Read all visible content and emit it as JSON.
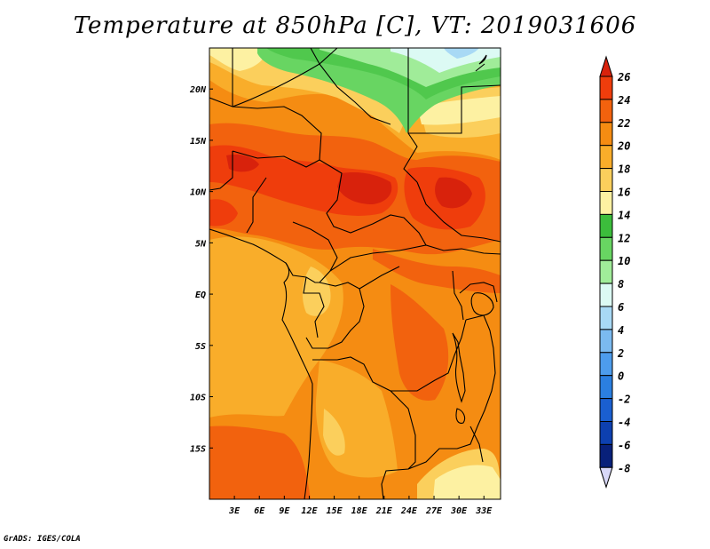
{
  "title": "Temperature at 850hPa [C], VT: 2019031606",
  "credit": "GrADS: IGES/COLA",
  "map": {
    "lon_range": [
      0,
      35
    ],
    "lat_range": [
      -20,
      24
    ],
    "lat_ticks": [
      {
        "value": 20,
        "label": "20N"
      },
      {
        "value": 15,
        "label": "15N"
      },
      {
        "value": 10,
        "label": "10N"
      },
      {
        "value": 5,
        "label": "5N"
      },
      {
        "value": 0,
        "label": "EQ"
      },
      {
        "value": -5,
        "label": "5S"
      },
      {
        "value": -10,
        "label": "10S"
      },
      {
        "value": -15,
        "label": "15S"
      }
    ],
    "lon_ticks": [
      {
        "value": 3,
        "label": "3E"
      },
      {
        "value": 6,
        "label": "6E"
      },
      {
        "value": 9,
        "label": "9E"
      },
      {
        "value": 12,
        "label": "12E"
      },
      {
        "value": 15,
        "label": "15E"
      },
      {
        "value": 18,
        "label": "18E"
      },
      {
        "value": 21,
        "label": "21E"
      },
      {
        "value": 24,
        "label": "24E"
      },
      {
        "value": 27,
        "label": "27E"
      },
      {
        "value": 30,
        "label": "30E"
      },
      {
        "value": 33,
        "label": "33E"
      }
    ]
  },
  "colorbar": {
    "levels": [
      26,
      24,
      22,
      20,
      18,
      16,
      14,
      12,
      10,
      8,
      6,
      4,
      2,
      0,
      -2,
      -4,
      -6,
      -8
    ],
    "colors": {
      "above_26": "#d8220c",
      "24_26": "#ef3d0c",
      "22_24": "#f2620e",
      "20_22": "#f58c12",
      "18_20": "#f9ad2a",
      "16_18": "#fbcf5c",
      "14_16": "#fdf1a2",
      "12_14": "#3cbd3c",
      "10_12": "#68d562",
      "8_10": "#a0ec99",
      "6_8": "#dcfaf4",
      "4_6": "#a8d9f5",
      "2_4": "#7bbaf0",
      "0_2": "#4d9cec",
      "-2_0": "#2b7fe0",
      "-4_-2": "#1a5fd0",
      "-6_-4": "#0d40b0",
      "-8_-6": "#08207a",
      "below_-8": "#d8d8f8"
    }
  }
}
